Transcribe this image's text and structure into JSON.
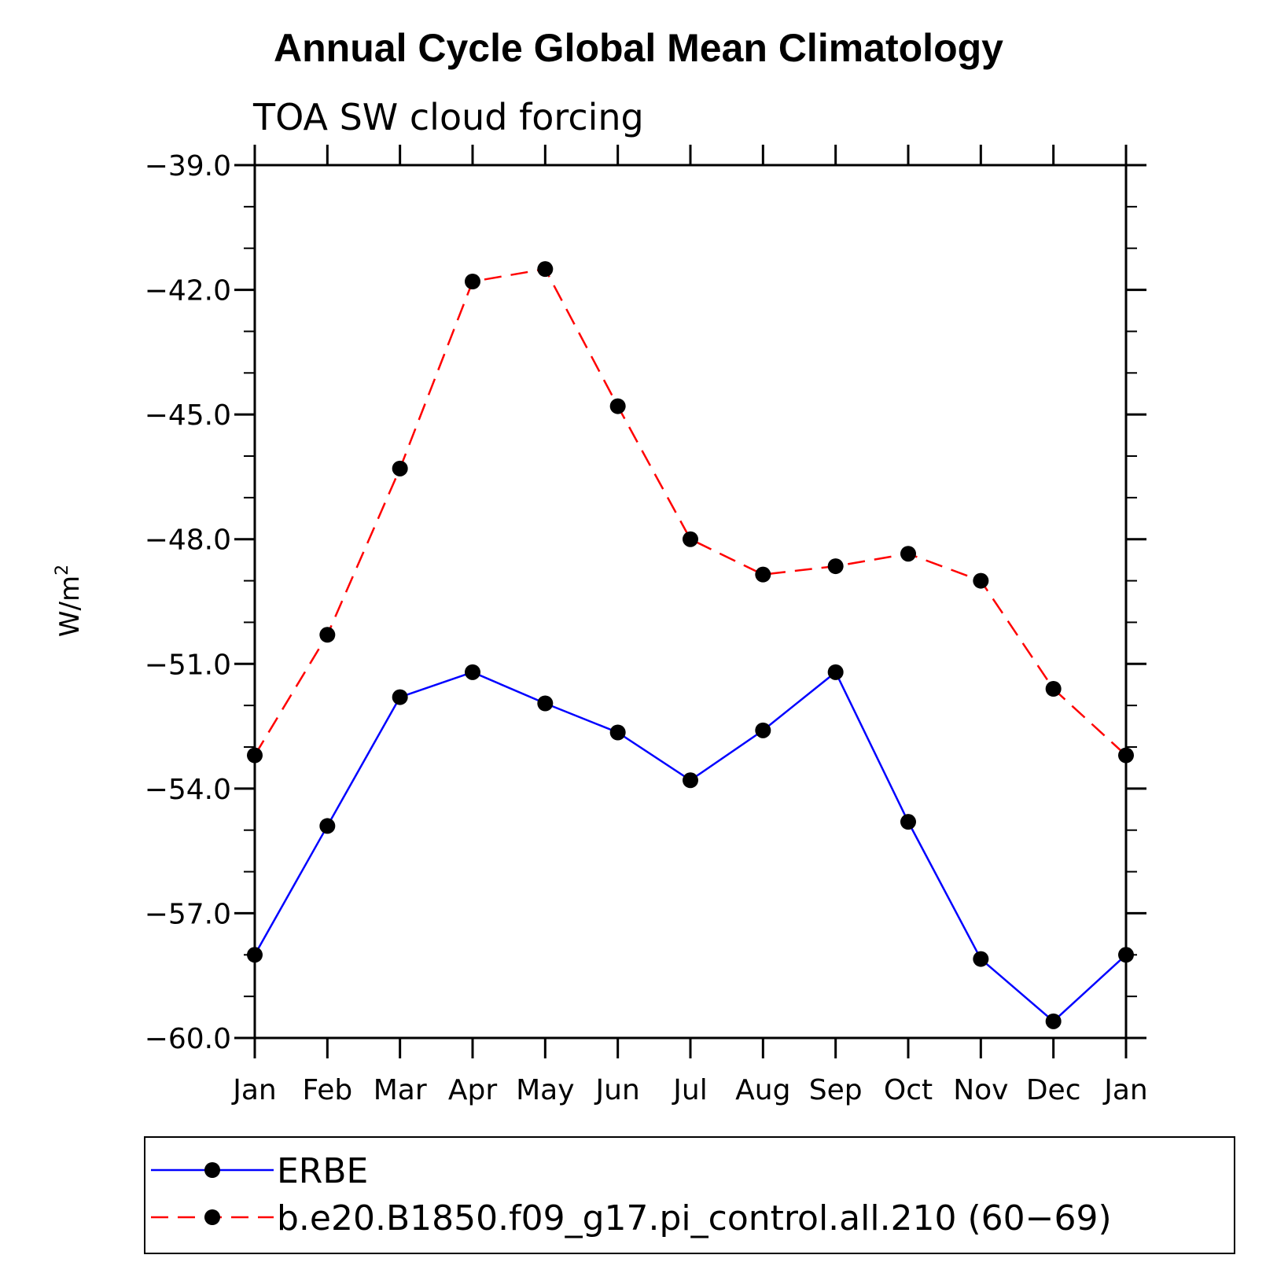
{
  "chart_data": {
    "type": "line",
    "title": "Annual Cycle Global Mean Climatology",
    "subtitle": "TOA SW cloud forcing",
    "ylabel_base": "W/m",
    "ylabel_sup": "2",
    "categories": [
      "Jan",
      "Feb",
      "Mar",
      "Apr",
      "May",
      "Jun",
      "Jul",
      "Aug",
      "Sep",
      "Oct",
      "Nov",
      "Dec",
      "Jan"
    ],
    "ylim": [
      -60.0,
      -39.0
    ],
    "yticks": [
      -39.0,
      -42.0,
      -45.0,
      -48.0,
      -51.0,
      -54.0,
      -57.0,
      -60.0
    ],
    "ytick_labels": [
      "−39.0",
      "−42.0",
      "−45.0",
      "−48.0",
      "−51.0",
      "−54.0",
      "−57.0",
      "−60.0"
    ],
    "grid": false,
    "legend_position": "bottom",
    "series": [
      {
        "name": "ERBE",
        "color": "#0000ff",
        "dash": "solid",
        "marker": "filled-circle",
        "values": [
          -58.0,
          -54.9,
          -51.8,
          -51.2,
          -51.95,
          -52.65,
          -53.8,
          -52.6,
          -51.2,
          -54.8,
          -58.1,
          -59.6,
          -58.0
        ]
      },
      {
        "name": "b.e20.B1850.f09_g17.pi_control.all.210 (60−69)",
        "color": "#ff0000",
        "dash": "dashed",
        "marker": "filled-circle",
        "values": [
          -53.2,
          -50.3,
          -46.3,
          -41.8,
          -41.5,
          -44.8,
          -48.0,
          -48.85,
          -48.65,
          -48.35,
          -49.0,
          -51.6,
          -53.2
        ]
      }
    ]
  }
}
